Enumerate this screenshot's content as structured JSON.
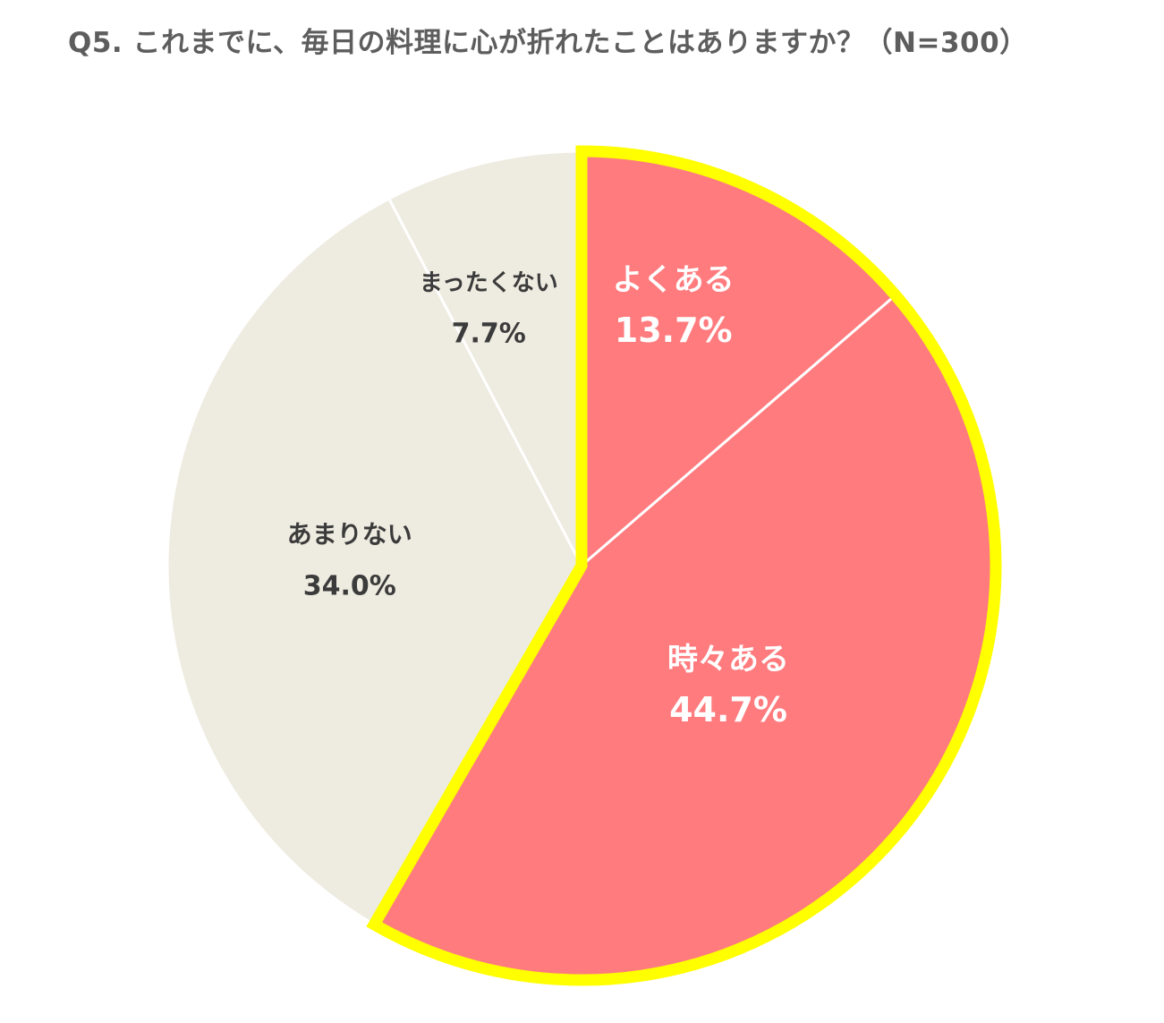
{
  "chart_data": {
    "type": "pie",
    "title": "Q5. これまでに、毎日の料理に心が折れたことはありますか？（N=300）",
    "categories": [
      "よくある",
      "時々ある",
      "あまりない",
      "まったくない"
    ],
    "values": [
      13.7,
      44.7,
      34.0,
      7.7
    ],
    "value_labels": [
      "13.7%",
      "44.7%",
      "34.0%",
      "7.7%"
    ],
    "unit": "%",
    "start_angle": "12 o'clock",
    "direction": "clockwise",
    "highlighted_categories": [
      "よくある",
      "時々ある"
    ],
    "legend": "none (labels inside slices)"
  },
  "colors": {
    "highlight_fill": "#ff7b7e",
    "neutral_fill": "#eeebe0",
    "highlight_outline": "#ffff00",
    "divider": "#ffffff",
    "label_on_highlight": "#ffffff",
    "label_on_neutral": "#3b3b3b",
    "title": "#5d5d5d"
  }
}
